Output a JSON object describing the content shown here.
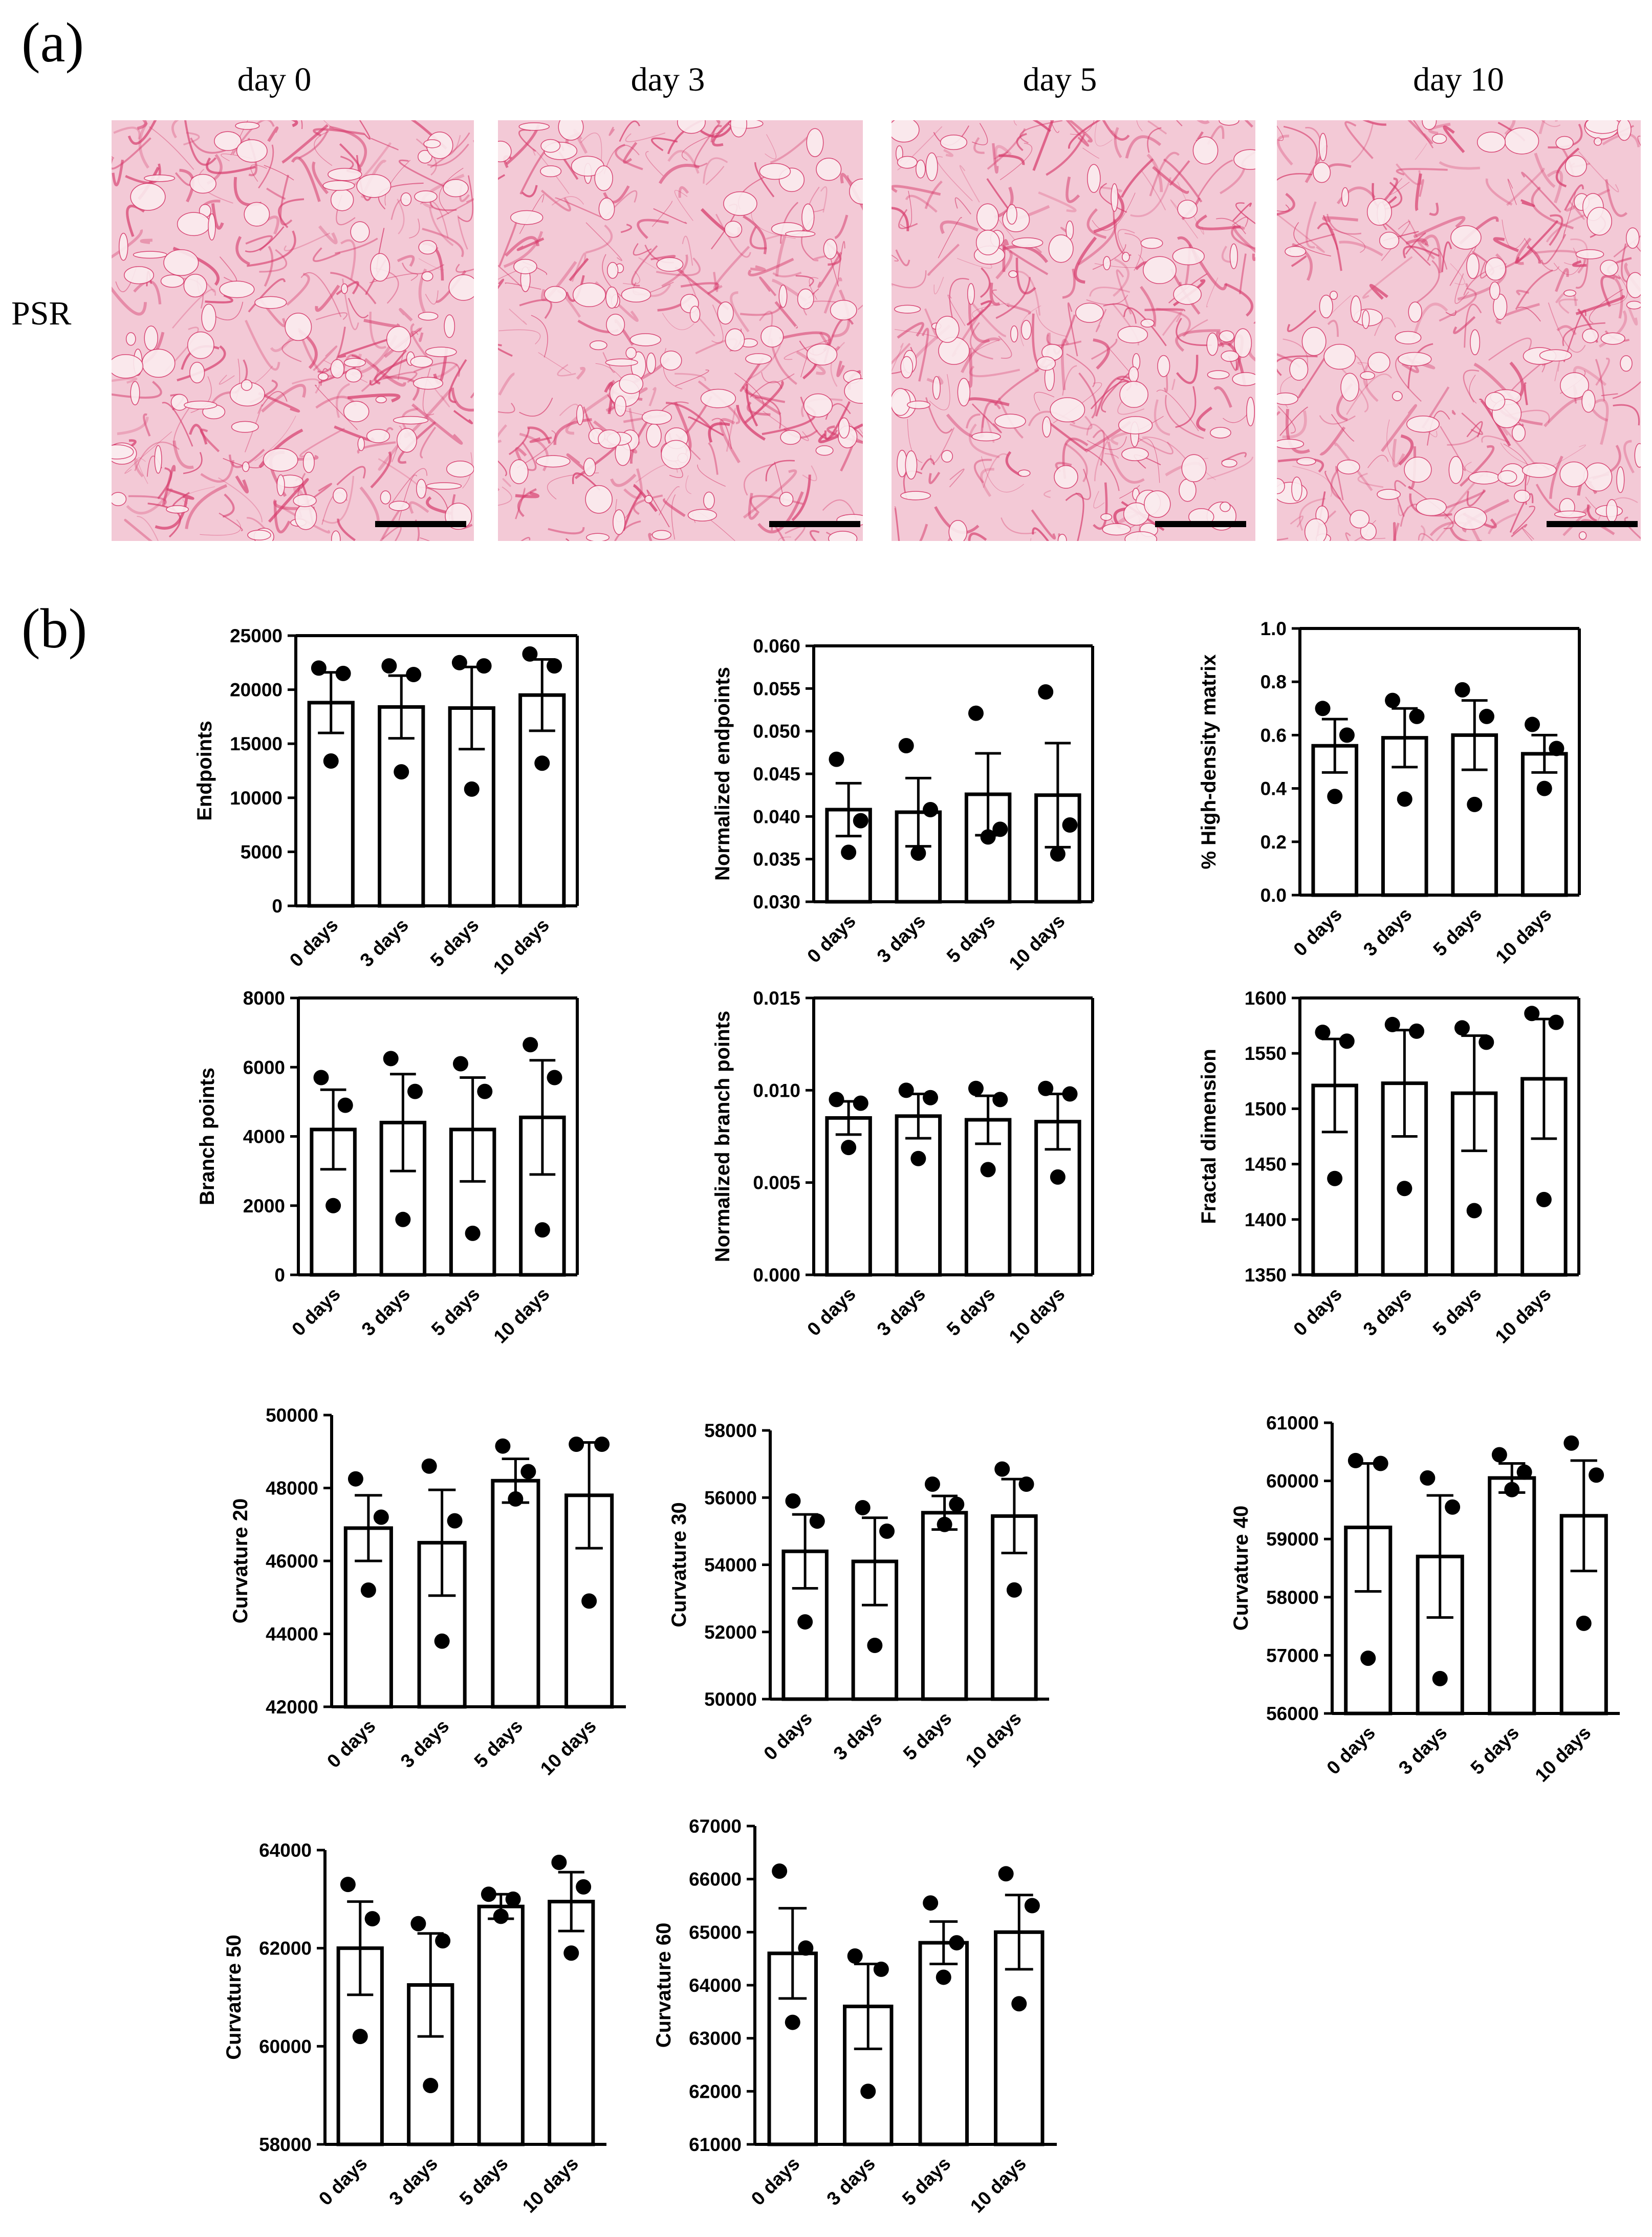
{
  "panel_a": {
    "label": "(a)",
    "days": [
      "day 0",
      "day 3",
      "day 5",
      "day 10"
    ],
    "row_label": "PSR",
    "stain_color": "#d63a6b"
  },
  "panel_b": {
    "label": "(b)"
  },
  "chart_data": [
    {
      "type": "bar",
      "ylabel": "Endpoints",
      "categories": [
        "0 days",
        "3 days",
        "5 days",
        "10 days"
      ],
      "values": [
        18800,
        18400,
        18300,
        19500
      ],
      "sem": [
        2800,
        2900,
        3800,
        3300
      ],
      "points": [
        [
          22000,
          21500,
          13400
        ],
        [
          22200,
          21400,
          12400
        ],
        [
          22500,
          22200,
          10800
        ],
        [
          23300,
          22200,
          13200
        ]
      ],
      "ylim": [
        0,
        25000
      ],
      "yticks": [
        0,
        5000,
        10000,
        15000,
        20000,
        25000
      ],
      "ytick_labels": [
        "0",
        "5000",
        "10000",
        "15000",
        "20000",
        "25000"
      ]
    },
    {
      "type": "bar",
      "ylabel": "Normalized endpoints",
      "categories": [
        "0 days",
        "3 days",
        "5 days",
        "10 days"
      ],
      "values": [
        0.0408,
        0.0405,
        0.0426,
        0.0425
      ],
      "sem": [
        0.0031,
        0.004,
        0.0048,
        0.0061
      ],
      "points": [
        [
          0.0467,
          0.0395,
          0.0358
        ],
        [
          0.0483,
          0.0408,
          0.0357
        ],
        [
          0.0521,
          0.0385,
          0.0376
        ],
        [
          0.0546,
          0.039,
          0.0356
        ]
      ],
      "ylim": [
        0.03,
        0.06
      ],
      "yticks": [
        0.03,
        0.035,
        0.04,
        0.045,
        0.05,
        0.055,
        0.06
      ],
      "ytick_labels": [
        "0.030",
        "0.035",
        "0.040",
        "0.045",
        "0.050",
        "0.055",
        "0.060"
      ]
    },
    {
      "type": "bar",
      "ylabel": "% High-density matrix",
      "categories": [
        "0 days",
        "3 days",
        "5 days",
        "10 days"
      ],
      "values": [
        0.56,
        0.59,
        0.6,
        0.53
      ],
      "sem": [
        0.1,
        0.11,
        0.13,
        0.07
      ],
      "points": [
        [
          0.7,
          0.6,
          0.37
        ],
        [
          0.73,
          0.67,
          0.36
        ],
        [
          0.77,
          0.67,
          0.34
        ],
        [
          0.64,
          0.55,
          0.4
        ]
      ],
      "ylim": [
        0,
        1.0
      ],
      "yticks": [
        0,
        0.2,
        0.4,
        0.6,
        0.8,
        1.0
      ],
      "ytick_labels": [
        "0.0",
        "0.2",
        "0.4",
        "0.6",
        "0.8",
        "1.0"
      ]
    },
    {
      "type": "bar",
      "ylabel": "Branch points",
      "categories": [
        "0 days",
        "3 days",
        "5 days",
        "10 days"
      ],
      "values": [
        4200,
        4400,
        4200,
        4550
      ],
      "sem": [
        1150,
        1400,
        1500,
        1650
      ],
      "points": [
        [
          5700,
          4900,
          2000
        ],
        [
          6250,
          5300,
          1600
        ],
        [
          6100,
          5300,
          1200
        ],
        [
          6650,
          5700,
          1300
        ]
      ],
      "ylim": [
        0,
        8000
      ],
      "yticks": [
        0,
        2000,
        4000,
        6000,
        8000
      ],
      "ytick_labels": [
        "0",
        "2000",
        "4000",
        "6000",
        "8000"
      ]
    },
    {
      "type": "bar",
      "ylabel": "Normalized branch points",
      "categories": [
        "0 days",
        "3 days",
        "5 days",
        "10 days"
      ],
      "values": [
        0.0085,
        0.0086,
        0.0084,
        0.0083
      ],
      "sem": [
        0.0009,
        0.0012,
        0.0013,
        0.0015
      ],
      "points": [
        [
          0.0095,
          0.0093,
          0.0069
        ],
        [
          0.01,
          0.0096,
          0.0063
        ],
        [
          0.0101,
          0.0095,
          0.0057
        ],
        [
          0.0101,
          0.0098,
          0.0053
        ]
      ],
      "ylim": [
        0,
        0.015
      ],
      "yticks": [
        0,
        0.005,
        0.01,
        0.015
      ],
      "ytick_labels": [
        "0.000",
        "0.005",
        "0.010",
        "0.015"
      ]
    },
    {
      "type": "bar",
      "ylabel": "Fractal dimension",
      "categories": [
        "0 days",
        "3 days",
        "5 days",
        "10 days"
      ],
      "values": [
        1521,
        1523,
        1514,
        1527
      ],
      "sem": [
        42,
        48,
        52,
        54
      ],
      "points": [
        [
          1569,
          1561,
          1437
        ],
        [
          1576,
          1570,
          1428
        ],
        [
          1573,
          1560,
          1408
        ],
        [
          1586,
          1578,
          1418
        ]
      ],
      "ylim": [
        1350,
        1600
      ],
      "yticks": [
        1350,
        1400,
        1450,
        1500,
        1550,
        1600
      ],
      "ytick_labels": [
        "1350",
        "1400",
        "1450",
        "1500",
        "1550",
        "1600"
      ]
    },
    {
      "type": "bar",
      "ylabel": "Curvature 20",
      "categories": [
        "0 days",
        "3 days",
        "5 days",
        "10 days"
      ],
      "values": [
        46900,
        46500,
        48200,
        47800
      ],
      "sem": [
        900,
        1450,
        600,
        1450
      ],
      "points": [
        [
          48250,
          47200,
          45200
        ],
        [
          48600,
          47100,
          43800
        ],
        [
          49150,
          48450,
          47700
        ],
        [
          49200,
          49200,
          44900
        ]
      ],
      "ylim": [
        42000,
        50000
      ],
      "yticks": [
        42000,
        44000,
        46000,
        48000,
        50000
      ],
      "ytick_labels": [
        "42000",
        "44000",
        "46000",
        "48000",
        "50000"
      ]
    },
    {
      "type": "bar",
      "ylabel": "Curvature 30",
      "categories": [
        "0 days",
        "3 days",
        "5 days",
        "10 days"
      ],
      "values": [
        54400,
        54100,
        55550,
        55450
      ],
      "sem": [
        1100,
        1300,
        500,
        1100
      ],
      "points": [
        [
          55900,
          55300,
          52300
        ],
        [
          55700,
          55000,
          51600
        ],
        [
          56400,
          55800,
          55200
        ],
        [
          56850,
          56400,
          53250
        ]
      ],
      "ylim": [
        50000,
        58000
      ],
      "yticks": [
        50000,
        52000,
        54000,
        56000,
        58000
      ],
      "ytick_labels": [
        "50000",
        "52000",
        "54000",
        "56000",
        "58000"
      ]
    },
    {
      "type": "bar",
      "ylabel": "Curvature 40",
      "categories": [
        "0 days",
        "3 days",
        "5 days",
        "10 days"
      ],
      "values": [
        59200,
        58700,
        60050,
        59400
      ],
      "sem": [
        1100,
        1050,
        250,
        950
      ],
      "points": [
        [
          60350,
          60300,
          56950
        ],
        [
          60050,
          59550,
          56600
        ],
        [
          60450,
          60150,
          59850
        ],
        [
          60650,
          60100,
          57550
        ]
      ],
      "ylim": [
        56000,
        61000
      ],
      "yticks": [
        56000,
        57000,
        58000,
        59000,
        60000,
        61000
      ],
      "ytick_labels": [
        "56000",
        "57000",
        "58000",
        "59000",
        "60000",
        "61000"
      ]
    },
    {
      "type": "bar",
      "ylabel": "Curvature 50",
      "categories": [
        "0 days",
        "3 days",
        "5 days",
        "10 days"
      ],
      "values": [
        62000,
        61250,
        62850,
        62950
      ],
      "sem": [
        950,
        1050,
        250,
        600
      ],
      "points": [
        [
          63300,
          62600,
          60200
        ],
        [
          62500,
          62150,
          59200
        ],
        [
          63100,
          63000,
          62650
        ],
        [
          63750,
          63250,
          61900
        ]
      ],
      "ylim": [
        58000,
        64000
      ],
      "yticks": [
        58000,
        60000,
        62000,
        64000
      ],
      "ytick_labels": [
        "58000",
        "60000",
        "62000",
        "64000"
      ]
    },
    {
      "type": "bar",
      "ylabel": "Curvature 60",
      "categories": [
        "0 days",
        "3 days",
        "5 days",
        "10 days"
      ],
      "values": [
        64600,
        63600,
        64800,
        65000
      ],
      "sem": [
        850,
        800,
        400,
        700
      ],
      "points": [
        [
          66150,
          64700,
          63300
        ],
        [
          64550,
          64300,
          62000
        ],
        [
          65550,
          64800,
          64150
        ],
        [
          66100,
          65500,
          63650
        ]
      ],
      "ylim": [
        61000,
        67000
      ],
      "yticks": [
        61000,
        62000,
        63000,
        64000,
        65000,
        66000,
        67000
      ],
      "ytick_labels": [
        "61000",
        "62000",
        "63000",
        "64000",
        "65000",
        "66000",
        "67000"
      ]
    }
  ]
}
